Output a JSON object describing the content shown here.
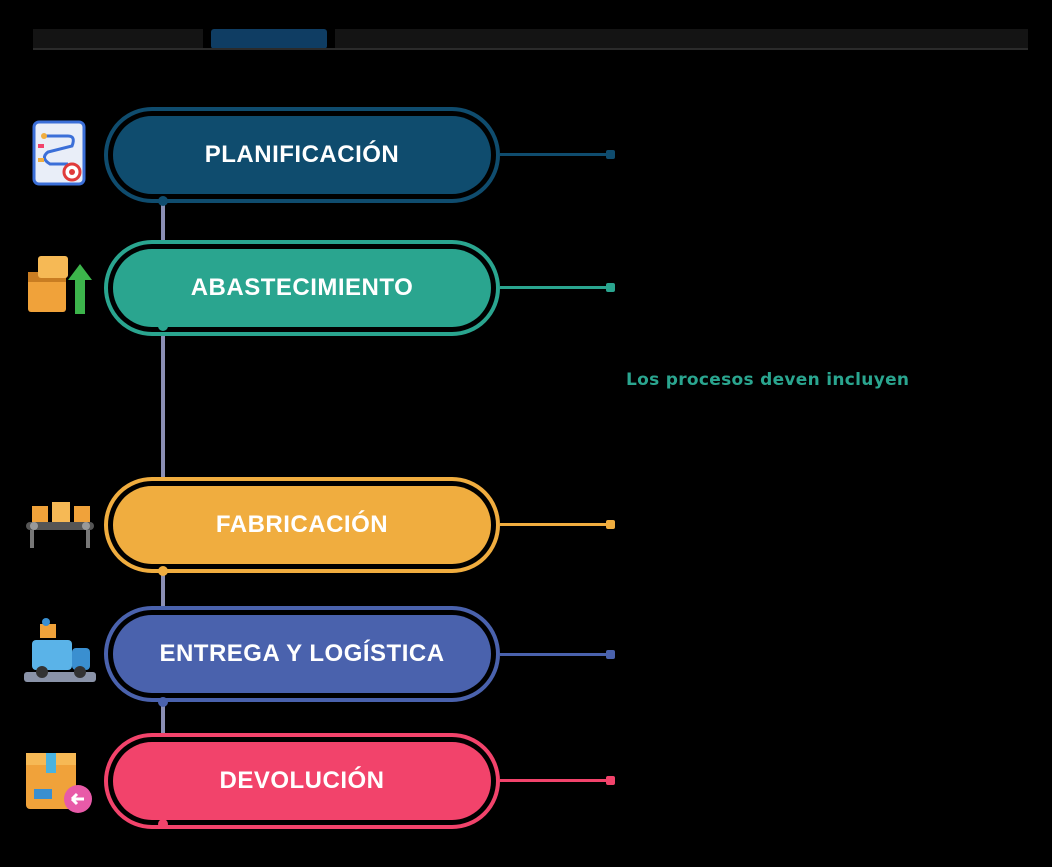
{
  "header": {
    "highlight_color": "#0f3d63",
    "text_color": "#1a1a1a"
  },
  "steps": [
    {
      "label": "PLANIFICACIÓN",
      "color": "#0f4c6e",
      "icon": "planning-board-icon"
    },
    {
      "label": "ABASTECIMIENTO",
      "color": "#2aa58f",
      "icon": "boxes-arrow-icon"
    },
    {
      "label": "FABRICACIÓN",
      "color": "#f0ad3f",
      "icon": "conveyor-belt-icon"
    },
    {
      "label": "ENTREGA Y LOGÍSTICA",
      "color": "#4a62ad",
      "icon": "delivery-truck-icon"
    },
    {
      "label": "DEVOLUCIÓN",
      "color": "#f2436b",
      "icon": "return-package-icon"
    }
  ],
  "side_note": {
    "text": "Los procesos deven incluyen",
    "color": "#2aa58f"
  },
  "timeline_color": "#8b8fb5"
}
